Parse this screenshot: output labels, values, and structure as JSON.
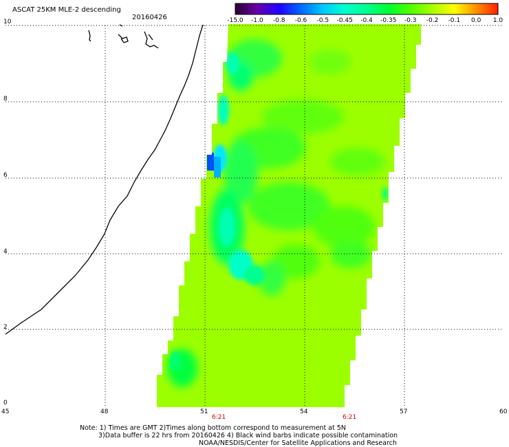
{
  "header": {
    "title": "ASCAT 25KM MLE-2 descending",
    "date": "20160426"
  },
  "colorbar": {
    "labels": [
      "-15.0",
      "-1.0",
      "-0.8",
      "-0.6",
      "-0.5",
      "-0.45",
      "-0.4",
      "-0.35",
      "-0.3",
      "-0.2",
      "-0.1",
      "0.0",
      "1.0"
    ],
    "colors": [
      "#2a0030",
      "#6a00a8",
      "#2000ff",
      "#0068ff",
      "#00c8ff",
      "#00ffd0",
      "#00ff90",
      "#00ff30",
      "#50ff00",
      "#a8ff00",
      "#ffff00",
      "#ff9000",
      "#ff2000"
    ]
  },
  "map": {
    "y_ticks": [
      "0",
      "2",
      "4",
      "6",
      "8",
      "10"
    ],
    "x_ticks": [
      "45",
      "48",
      "51",
      "54",
      "57",
      "60"
    ],
    "pass_times": [
      "6:21",
      "6:21"
    ],
    "swath_base_color": "#9cff00"
  },
  "notes": {
    "line1": "Note: 1) Times are GMT 2)Times along bottom correspond to measurement at 5N",
    "line2": "3)Data buffer is 22 hrs from 20160426 4) Black wind barbs indicate possible contamination",
    "line3": "NOAA/NESDIS/Center for Satellite Applications and Research"
  }
}
